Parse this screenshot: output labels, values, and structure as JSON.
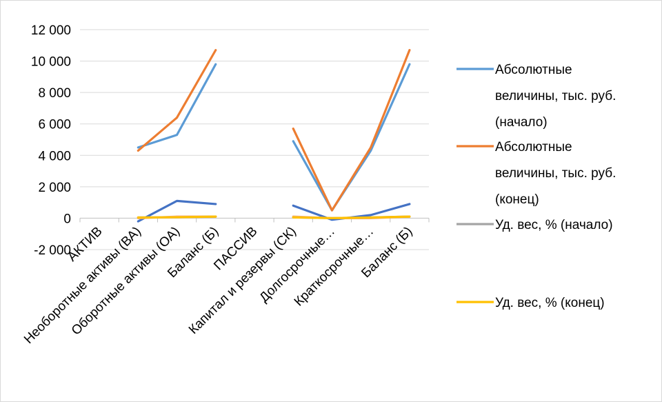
{
  "chart_data": {
    "type": "line",
    "categories": [
      "АКТИВ",
      "Необоротные активы (ВА)",
      "Оборотные активы (ОА)",
      "Баланс (Б)",
      "ПАССИВ",
      "Капитал и резервы (СК)",
      "Долгосрочные…",
      "Краткосрочные…",
      "Баланс (Б)"
    ],
    "y_tick_labels": [
      "-2 000",
      "0",
      "2 000",
      "4 000",
      "6 000",
      "8 000",
      "10 000",
      "12 000"
    ],
    "y_ticks": [
      -2000,
      0,
      2000,
      4000,
      6000,
      8000,
      10000,
      12000
    ],
    "ylim": [
      -2000,
      12000
    ],
    "grid": true,
    "legend_position": "right",
    "series": [
      {
        "name": "Абсолютные величины, тыс. руб. (начало)",
        "legend_lines": [
          "Абсолютные",
          "величины, тыс. руб.",
          "(начало)"
        ],
        "color": "#5b9bd5",
        "values": [
          null,
          4500,
          5300,
          9800,
          null,
          4900,
          500,
          4300,
          9800
        ]
      },
      {
        "name": "Абсолютные величины, тыс. руб. (конец)",
        "legend_lines": [
          "Абсолютные",
          "величины, тыс. руб.",
          "(конец)"
        ],
        "color": "#ed7d31",
        "values": [
          null,
          4300,
          6400,
          10700,
          null,
          5700,
          500,
          4500,
          10700
        ]
      },
      {
        "name": "Уд. вес, % (начало)",
        "legend_lines": [
          "Уд. вес, % (начало)"
        ],
        "color": "#a5a5a5",
        "values": [
          null,
          46,
          54,
          100,
          null,
          50,
          5,
          45,
          100
        ]
      },
      {
        "name": "Уд. вес, % (конец)",
        "legend_lines": [
          "Уд. вес, % (конец)"
        ],
        "color": "#ffc000",
        "values": [
          null,
          40,
          60,
          100,
          null,
          53,
          5,
          42,
          100
        ]
      }
    ],
    "unlabeled_series": [
      {
        "color": "#4472c4",
        "values": [
          null,
          -200,
          1100,
          900,
          null,
          800,
          -100,
          200,
          900
        ]
      },
      {
        "color": "#f4b183",
        "values": [
          null,
          0,
          100,
          100,
          null,
          100,
          0,
          0,
          100
        ]
      }
    ]
  }
}
